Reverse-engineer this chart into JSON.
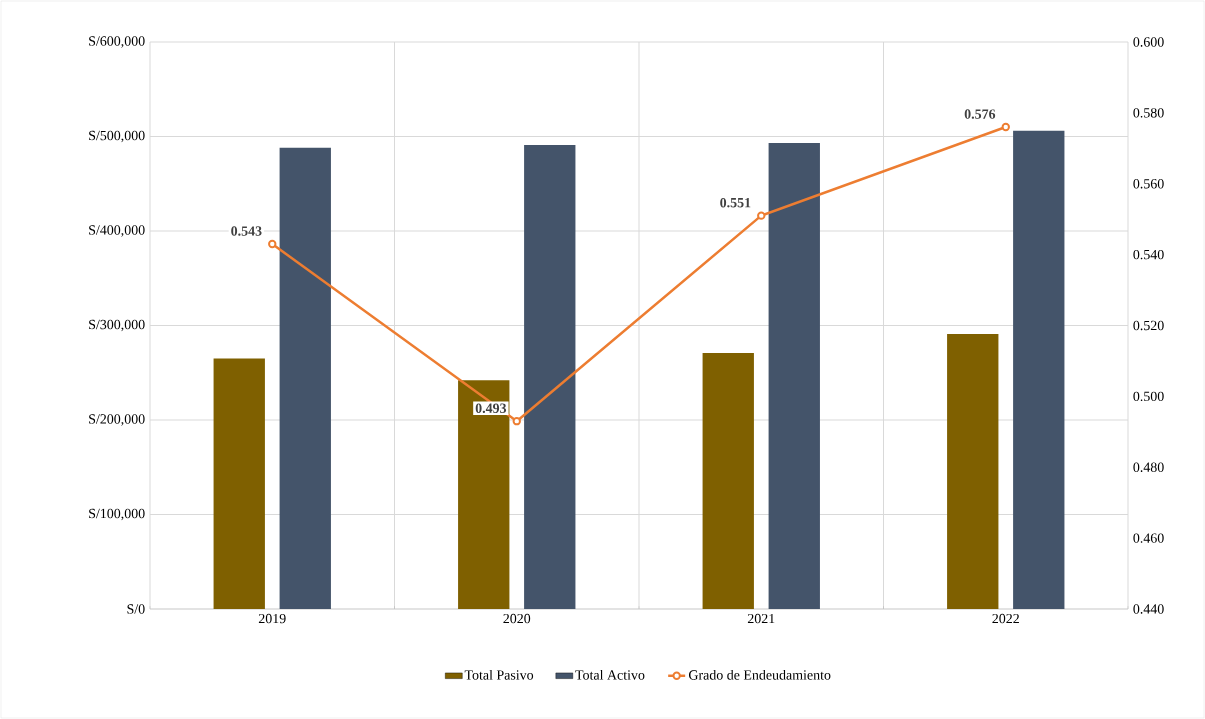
{
  "chart_data": {
    "type": "bar",
    "categories": [
      "2019",
      "2020",
      "2021",
      "2022"
    ],
    "series": [
      {
        "name": "Total Pasivo",
        "color": "#7f6000",
        "values": [
          265000,
          242000,
          271000,
          291000
        ]
      },
      {
        "name": "Total Activo",
        "color": "#44546a",
        "values": [
          488000,
          491000,
          493000,
          506000
        ]
      },
      {
        "name": "Grado de Endeudamiento",
        "type": "line",
        "axis": "y2",
        "color": "#ed7d31",
        "values": [
          0.543,
          0.493,
          0.551,
          0.576
        ],
        "value_labels": [
          "0.543",
          "0.493",
          "0.551",
          "0.576"
        ]
      }
    ],
    "ylim": [
      0,
      600000
    ],
    "yticks": [
      {
        "value": 0,
        "label": "S/0"
      },
      {
        "value": 100000,
        "label": "S/100,000"
      },
      {
        "value": 200000,
        "label": "S/200,000"
      },
      {
        "value": 300000,
        "label": "S/300,000"
      },
      {
        "value": 400000,
        "label": "S/400,000"
      },
      {
        "value": 500000,
        "label": "S/500,000"
      },
      {
        "value": 600000,
        "label": "S/600,000"
      }
    ],
    "y2lim": [
      0.44,
      0.6
    ],
    "y2ticks": [
      {
        "value": 0.44,
        "label": "0.440"
      },
      {
        "value": 0.46,
        "label": "0.460"
      },
      {
        "value": 0.48,
        "label": "0.480"
      },
      {
        "value": 0.5,
        "label": "0.500"
      },
      {
        "value": 0.52,
        "label": "0.520"
      },
      {
        "value": 0.54,
        "label": "0.540"
      },
      {
        "value": 0.56,
        "label": "0.560"
      },
      {
        "value": 0.58,
        "label": "0.580"
      },
      {
        "value": 0.6,
        "label": "0.600"
      }
    ],
    "grid": true,
    "legend": "bottom",
    "marker": "circle",
    "line_style": "solid"
  }
}
